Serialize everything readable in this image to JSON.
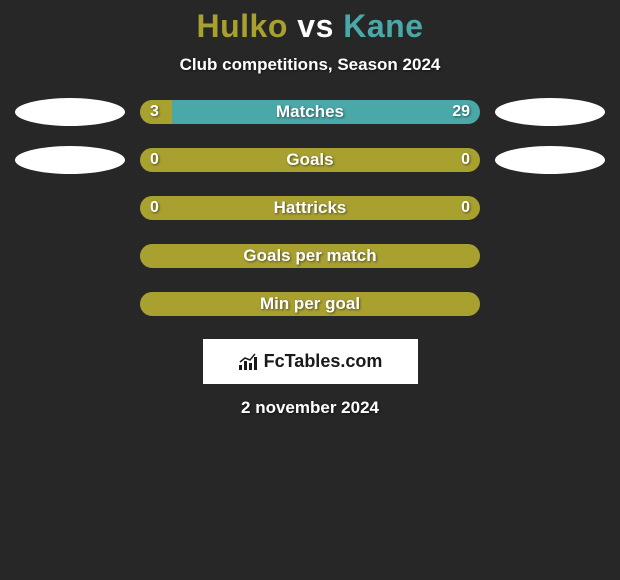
{
  "title": {
    "player1": "Hulko",
    "vs": "vs",
    "player2": "Kane",
    "color1": "#a8a02f",
    "color_vs": "#ffffff",
    "color2": "#4aa8a8"
  },
  "subtitle": "Club competitions, Season 2024",
  "accent1": "#a8a02f",
  "accent2": "#4aa8a8",
  "bars": [
    {
      "label": "Matches",
      "left_val": "3",
      "right_val": "29",
      "left_pct": 9.375,
      "bg": "#4aa8a8",
      "fill": "#a8a02f",
      "show_vals": true,
      "oval_left": true,
      "oval_right": true,
      "oval_left_color": "#ffffff",
      "oval_right_color": "#ffffff"
    },
    {
      "label": "Goals",
      "left_val": "0",
      "right_val": "0",
      "left_pct": 0,
      "bg": "#a8a02f",
      "fill": "#a8a02f",
      "show_vals": true,
      "oval_left": true,
      "oval_right": true,
      "oval_left_color": "#ffffff",
      "oval_right_color": "#ffffff"
    },
    {
      "label": "Hattricks",
      "left_val": "0",
      "right_val": "0",
      "left_pct": 0,
      "bg": "#a8a02f",
      "fill": "#a8a02f",
      "show_vals": true,
      "oval_left": false,
      "oval_right": false
    },
    {
      "label": "Goals per match",
      "left_val": "",
      "right_val": "",
      "left_pct": 0,
      "bg": "#a8a02f",
      "fill": "#a8a02f",
      "show_vals": false,
      "oval_left": false,
      "oval_right": false
    },
    {
      "label": "Min per goal",
      "left_val": "",
      "right_val": "",
      "left_pct": 0,
      "bg": "#a8a02f",
      "fill": "#a8a02f",
      "show_vals": false,
      "oval_left": false,
      "oval_right": false
    }
  ],
  "logo": "FcTables.com",
  "date": "2 november 2024"
}
